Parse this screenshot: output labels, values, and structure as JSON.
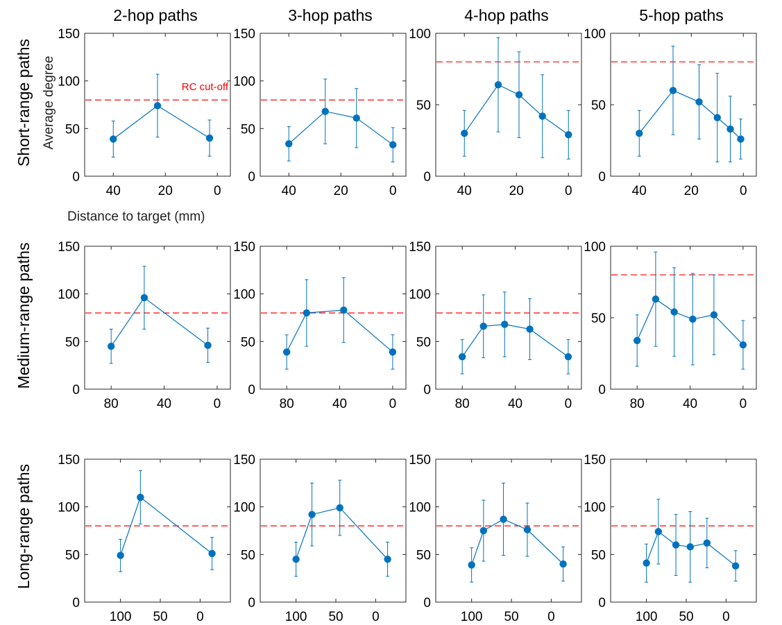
{
  "figure": {
    "column_titles": [
      "2-hop paths",
      "3-hop paths",
      "4-hop paths",
      "5-hop paths"
    ],
    "row_labels": [
      "Short-range paths",
      "Medium-range paths",
      "Long-range paths"
    ],
    "ylabel": "Average degree",
    "xlabel": "Distance to target (mm)",
    "annotation": "RC cut-off",
    "colors": {
      "series": "#0072bd",
      "cutoff": "#ff0000",
      "axes": "#262626"
    }
  },
  "chart_data": [
    {
      "type": "line",
      "row": "Short-range paths",
      "column": "2-hop paths",
      "x": [
        40,
        23,
        3
      ],
      "y": [
        39,
        74,
        40
      ],
      "err": [
        19,
        33,
        19
      ],
      "xlim": [
        51,
        -5
      ],
      "xticks": [
        40,
        20,
        0
      ],
      "ylim": [
        0,
        150
      ],
      "yticks": [
        0,
        50,
        100,
        150
      ],
      "cutoff": 80,
      "x_reversed": true
    },
    {
      "type": "line",
      "row": "Short-range paths",
      "column": "3-hop paths",
      "x": [
        40,
        26,
        14,
        0
      ],
      "y": [
        34,
        68,
        61,
        33
      ],
      "err": [
        18,
        34,
        31,
        18
      ],
      "xlim": [
        51,
        -5
      ],
      "xticks": [
        40,
        20,
        0
      ],
      "ylim": [
        0,
        150
      ],
      "yticks": [
        0,
        50,
        100,
        150
      ],
      "cutoff": 80,
      "x_reversed": true
    },
    {
      "type": "line",
      "row": "Short-range paths",
      "column": "4-hop paths",
      "x": [
        40,
        27,
        19,
        10,
        0
      ],
      "y": [
        30,
        64,
        57,
        42,
        29
      ],
      "err": [
        16,
        33,
        30,
        29,
        17
      ],
      "xlim": [
        51,
        -5
      ],
      "xticks": [
        40,
        20,
        0
      ],
      "ylim": [
        0,
        100
      ],
      "yticks": [
        0,
        50,
        100
      ],
      "cutoff": 80,
      "x_reversed": true
    },
    {
      "type": "line",
      "row": "Short-range paths",
      "column": "5-hop paths",
      "x": [
        40,
        27,
        17,
        10,
        5,
        1
      ],
      "y": [
        30,
        60,
        52,
        41,
        33,
        26
      ],
      "err": [
        16,
        31,
        26,
        31,
        23,
        14
      ],
      "xlim": [
        51,
        -5
      ],
      "xticks": [
        40,
        20,
        0
      ],
      "ylim": [
        0,
        100
      ],
      "yticks": [
        0,
        50,
        100
      ],
      "cutoff": 80,
      "x_reversed": true
    },
    {
      "type": "line",
      "row": "Medium-range paths",
      "column": "2-hop paths",
      "x": [
        80,
        55,
        7
      ],
      "y": [
        45,
        96,
        46
      ],
      "err": [
        18,
        33,
        18
      ],
      "xlim": [
        100,
        -10
      ],
      "xticks": [
        80,
        40,
        0
      ],
      "ylim": [
        0,
        150
      ],
      "yticks": [
        0,
        50,
        100,
        150
      ],
      "cutoff": 80,
      "x_reversed": true
    },
    {
      "type": "line",
      "row": "Medium-range paths",
      "column": "3-hop paths",
      "x": [
        80,
        65,
        37,
        0
      ],
      "y": [
        39,
        80,
        83,
        39
      ],
      "err": [
        18,
        35,
        34,
        18
      ],
      "xlim": [
        100,
        -10
      ],
      "xticks": [
        80,
        40,
        0
      ],
      "ylim": [
        0,
        150
      ],
      "yticks": [
        0,
        50,
        100,
        150
      ],
      "cutoff": 80,
      "x_reversed": true
    },
    {
      "type": "line",
      "row": "Medium-range paths",
      "column": "4-hop paths",
      "x": [
        80,
        64,
        48,
        29,
        0
      ],
      "y": [
        34,
        66,
        68,
        63,
        34
      ],
      "err": [
        18,
        33,
        34,
        32,
        18
      ],
      "xlim": [
        100,
        -10
      ],
      "xticks": [
        80,
        40,
        0
      ],
      "ylim": [
        0,
        150
      ],
      "yticks": [
        0,
        50,
        100,
        150
      ],
      "cutoff": 80,
      "x_reversed": true
    },
    {
      "type": "line",
      "row": "Medium-range paths",
      "column": "5-hop paths",
      "x": [
        80,
        66,
        52,
        38,
        22,
        0
      ],
      "y": [
        34,
        63,
        54,
        49,
        52,
        31
      ],
      "err": [
        18,
        33,
        31,
        32,
        28,
        17
      ],
      "xlim": [
        100,
        -10
      ],
      "xticks": [
        80,
        40,
        0
      ],
      "ylim": [
        0,
        100
      ],
      "yticks": [
        0,
        50,
        100
      ],
      "cutoff": 80,
      "x_reversed": true
    },
    {
      "type": "line",
      "row": "Long-range paths",
      "column": "2-hop paths",
      "x": [
        100,
        75,
        -15
      ],
      "y": [
        49,
        110,
        51
      ],
      "err": [
        17,
        28,
        17
      ],
      "xlim": [
        145,
        -38
      ],
      "xticks": [
        100,
        50,
        0
      ],
      "ylim": [
        0,
        150
      ],
      "yticks": [
        0,
        50,
        100,
        150
      ],
      "cutoff": 80,
      "x_reversed": true
    },
    {
      "type": "line",
      "row": "Long-range paths",
      "column": "3-hop paths",
      "x": [
        100,
        80,
        45,
        -15
      ],
      "y": [
        45,
        92,
        99,
        45
      ],
      "err": [
        18,
        33,
        29,
        18
      ],
      "xlim": [
        145,
        -38
      ],
      "xticks": [
        100,
        50,
        0
      ],
      "ylim": [
        0,
        150
      ],
      "yticks": [
        0,
        50,
        100,
        150
      ],
      "cutoff": 80,
      "x_reversed": true
    },
    {
      "type": "line",
      "row": "Long-range paths",
      "column": "4-hop paths",
      "x": [
        100,
        85,
        60,
        30,
        -15
      ],
      "y": [
        39,
        75,
        87,
        76,
        40
      ],
      "err": [
        18,
        32,
        38,
        28,
        18
      ],
      "xlim": [
        145,
        -38
      ],
      "xticks": [
        100,
        50,
        0
      ],
      "ylim": [
        0,
        150
      ],
      "yticks": [
        0,
        50,
        100,
        150
      ],
      "cutoff": 80,
      "x_reversed": true
    },
    {
      "type": "line",
      "row": "Long-range paths",
      "column": "5-hop paths",
      "x": [
        100,
        85,
        63,
        45,
        24,
        -12
      ],
      "y": [
        41,
        74,
        60,
        58,
        62,
        38
      ],
      "err": [
        20,
        34,
        32,
        37,
        26,
        16
      ],
      "xlim": [
        145,
        -38
      ],
      "xticks": [
        100,
        50,
        0
      ],
      "ylim": [
        0,
        150
      ],
      "yticks": [
        0,
        50,
        100,
        150
      ],
      "cutoff": 80,
      "x_reversed": true
    }
  ]
}
